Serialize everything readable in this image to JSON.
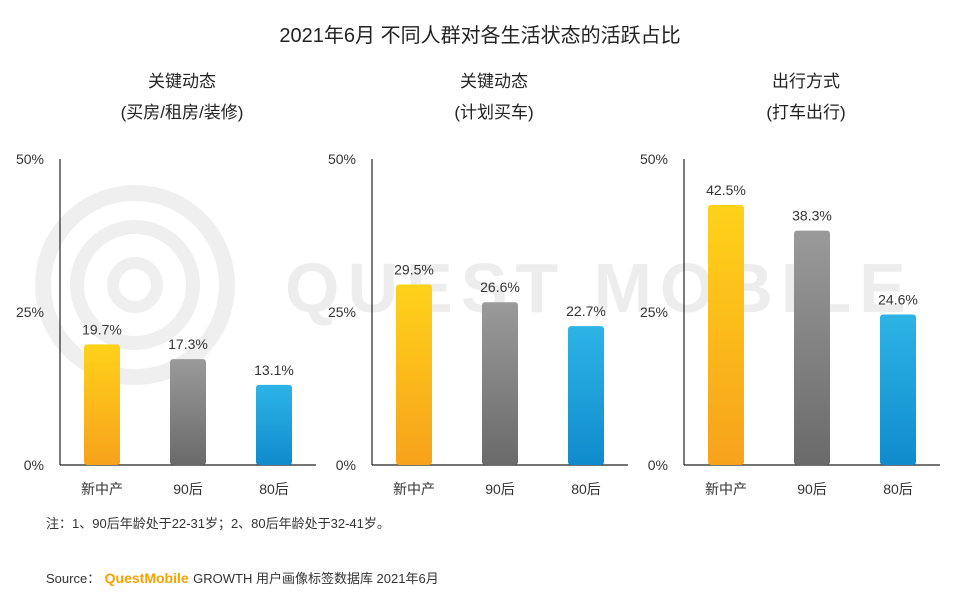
{
  "chart_data": {
    "type": "bar",
    "title": "2021年6月 不同人群对各生活状态的活跃占比",
    "y_ticks": [
      "50%",
      "25%",
      "0%"
    ],
    "ylim": [
      0,
      50
    ],
    "categories": [
      "新中产",
      "90后",
      "80后"
    ],
    "colors": {
      "gold_top": "#ffd21a",
      "gold_bottom": "#f7a21b",
      "gray_top": "#9a9a9a",
      "gray_bottom": "#6a6a6a",
      "blue_top": "#2db4e6",
      "blue_bottom": "#0f8bcc"
    },
    "panels": [
      {
        "title_line1": "关键动态",
        "title_line2": "(买房/租房/装修)",
        "values": [
          19.7,
          17.3,
          13.1
        ],
        "labels": [
          "19.7%",
          "17.3%",
          "13.1%"
        ]
      },
      {
        "title_line1": "关键动态",
        "title_line2": "(计划买车)",
        "values": [
          29.5,
          26.6,
          22.7
        ],
        "labels": [
          "29.5%",
          "26.6%",
          "22.7%"
        ]
      },
      {
        "title_line1": "出行方式",
        "title_line2": "(打车出行)",
        "values": [
          42.5,
          38.3,
          24.6
        ],
        "labels": [
          "42.5%",
          "38.3%",
          "24.6%"
        ]
      }
    ]
  },
  "note": "注：1、90后年龄处于22-31岁；2、80后年龄处于32-41岁。",
  "source": {
    "prefix": "Source：",
    "brand": "QuestMobile",
    "suffix": "GROWTH 用户画像标签数据库 2021年6月"
  },
  "watermark": "QUEST MOBILE"
}
